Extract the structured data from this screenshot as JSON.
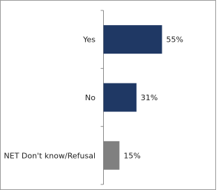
{
  "chart_data": {
    "type": "bar",
    "orientation": "horizontal",
    "categories": [
      "Yes",
      "No",
      "NET Don't know/Refusal"
    ],
    "values": [
      55,
      31,
      15
    ],
    "value_labels": [
      "55%",
      "31%",
      "15%"
    ],
    "colors": [
      "#1f3864",
      "#1f3864",
      "#808080"
    ]
  }
}
